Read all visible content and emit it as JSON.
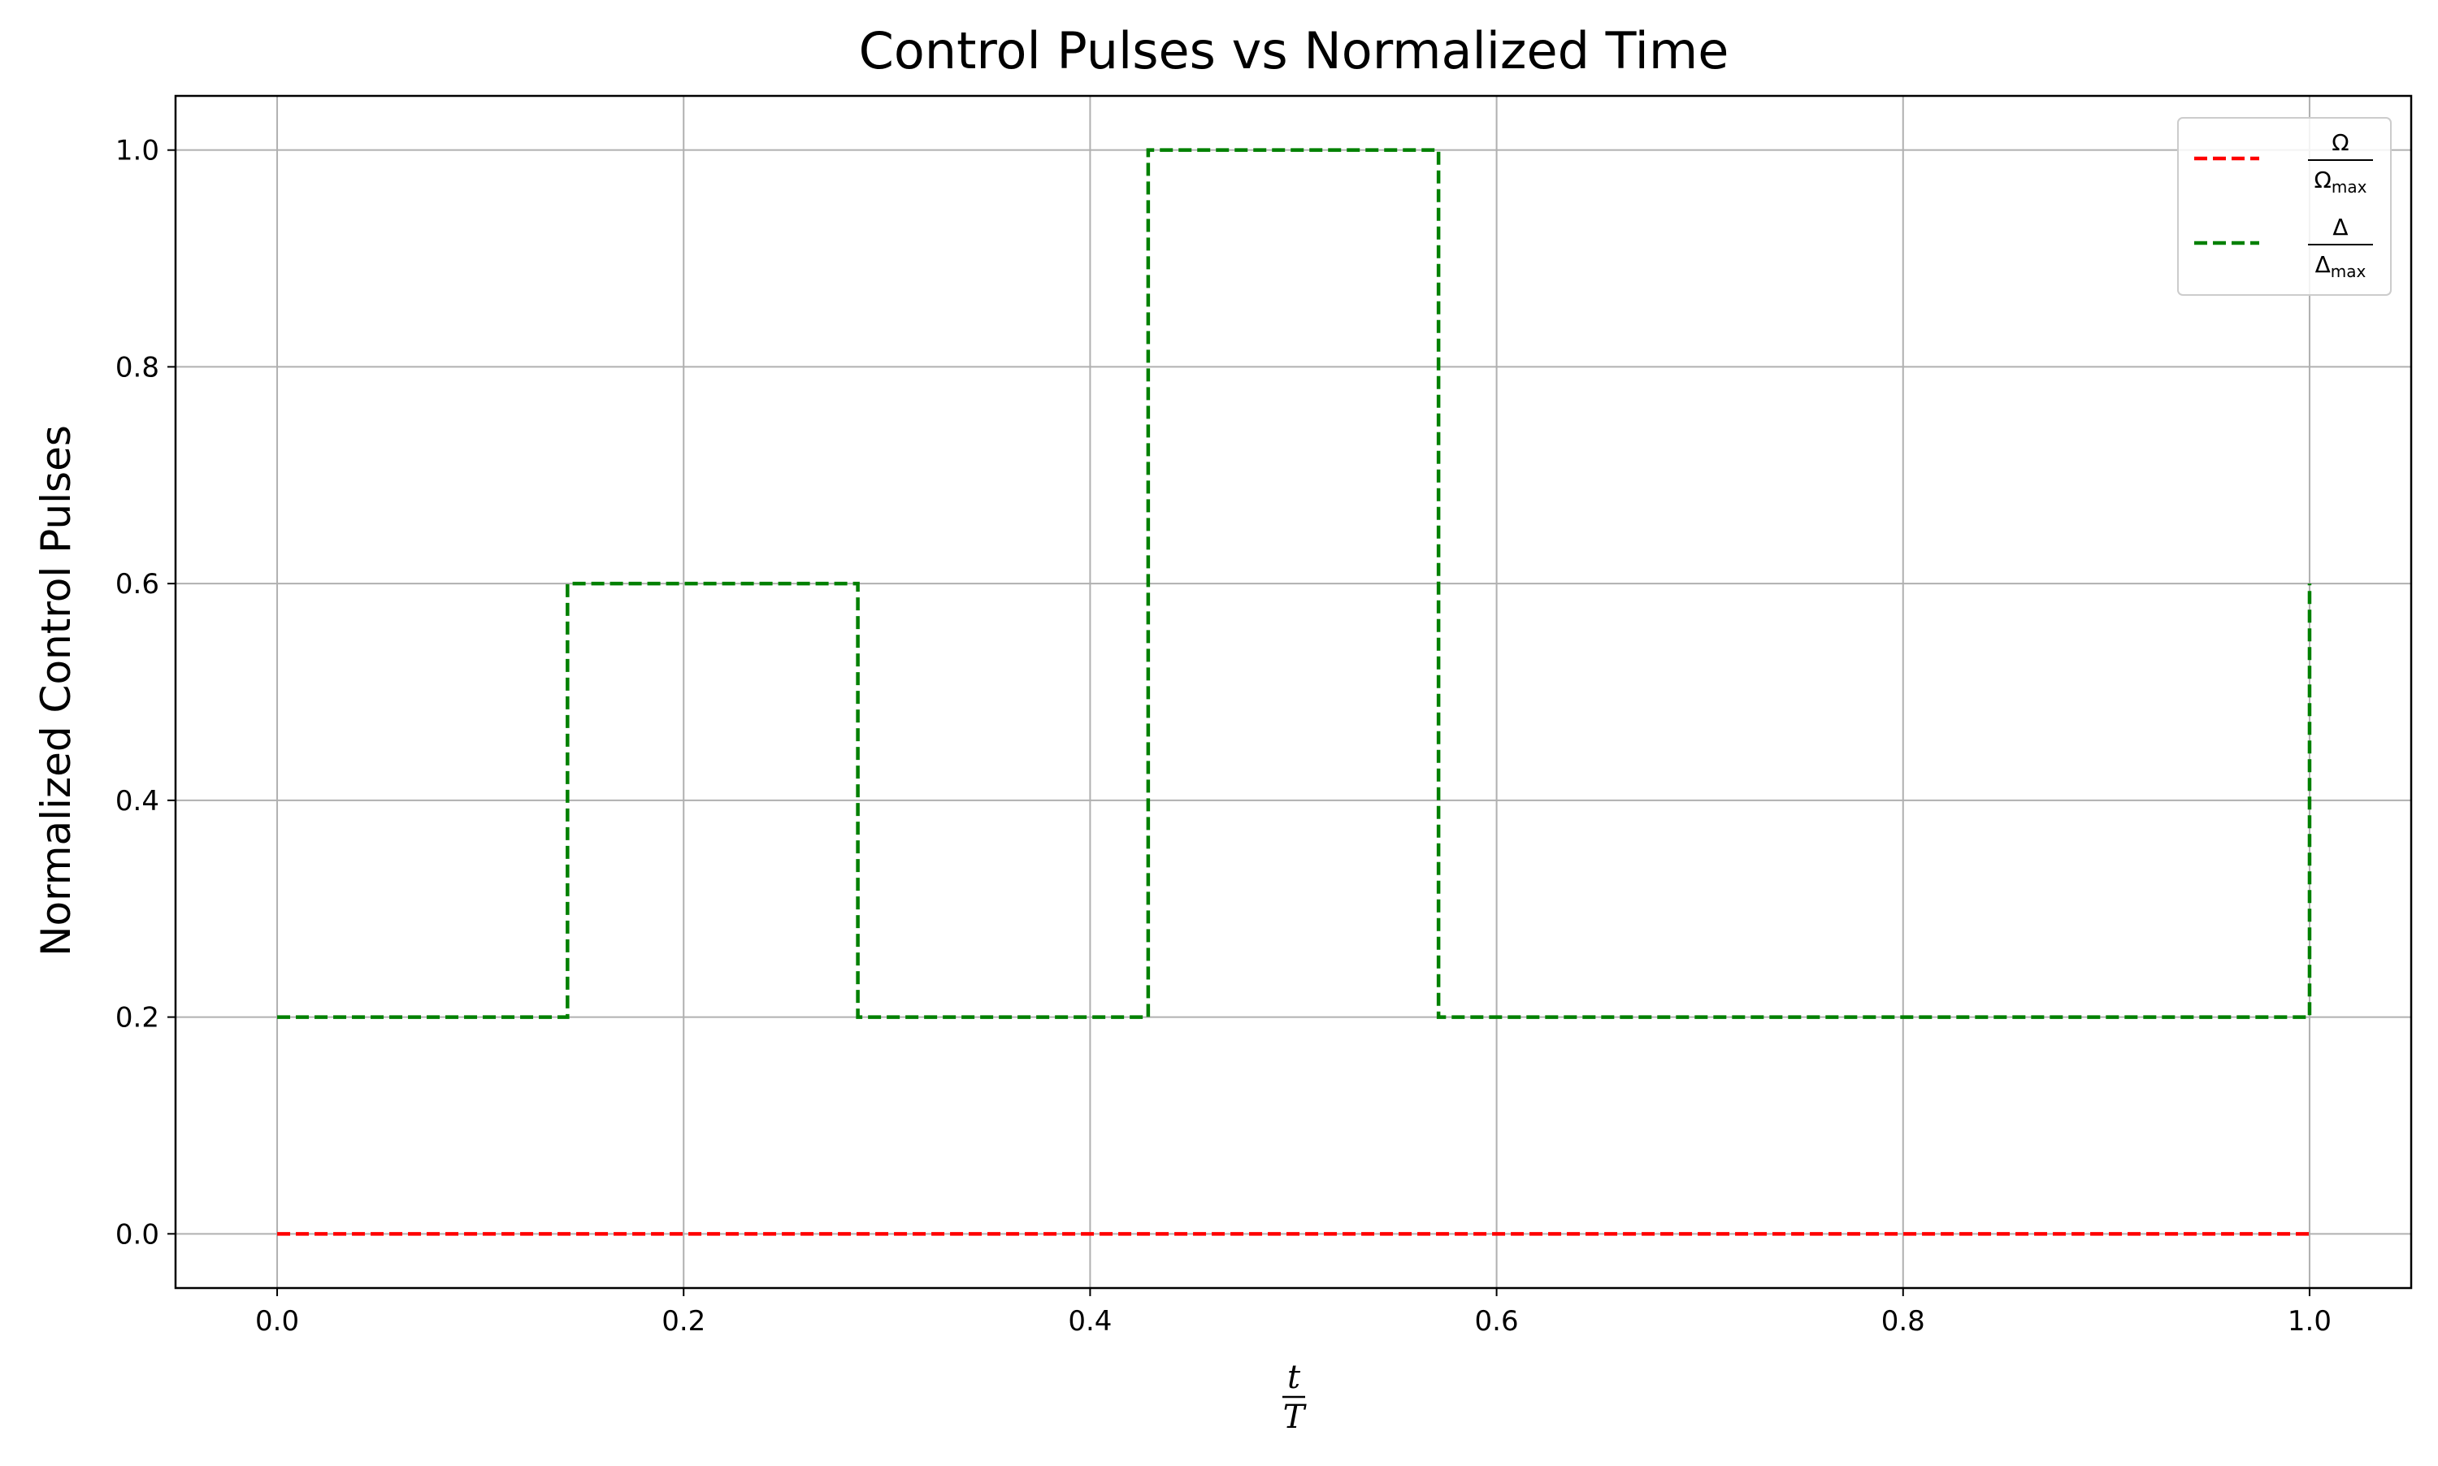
{
  "chart_data": {
    "type": "line",
    "title": "Control Pulses vs Normalized Time",
    "xlabel": {
      "numerator": "t",
      "denominator": "T"
    },
    "ylabel": "Normalized Control Pulses",
    "xlim": [
      -0.05,
      1.05
    ],
    "ylim": [
      -0.05,
      1.05
    ],
    "x_ticks": [
      0.0,
      0.2,
      0.4,
      0.6,
      0.8,
      1.0
    ],
    "x_tick_labels": [
      "0.0",
      "0.2",
      "0.4",
      "0.6",
      "0.8",
      "1.0"
    ],
    "y_ticks": [
      0.0,
      0.2,
      0.4,
      0.6,
      0.8,
      1.0
    ],
    "y_tick_labels": [
      "0.0",
      "0.2",
      "0.4",
      "0.6",
      "0.8",
      "1.0"
    ],
    "grid": true,
    "legend_position": "top-right",
    "series": [
      {
        "legend": {
          "numerator": "Ω",
          "denominator_base": "Ω",
          "denominator_sub": "max"
        },
        "color": "#ff0000",
        "line_style": "dashed",
        "step": "post",
        "x": [
          0.0,
          0.142857,
          0.285714,
          0.428571,
          0.571429,
          0.714286,
          0.857143,
          1.0
        ],
        "y": [
          0.0,
          0.0,
          0.0,
          0.0,
          0.0,
          0.0,
          0.0,
          0.0
        ]
      },
      {
        "legend": {
          "numerator": "Δ",
          "denominator_base": "Δ",
          "denominator_sub": "max"
        },
        "color": "#008000",
        "line_style": "dashed",
        "step": "post",
        "x": [
          0.0,
          0.142857,
          0.285714,
          0.428571,
          0.571429,
          0.714286,
          0.857143,
          1.0
        ],
        "y": [
          0.2,
          0.6,
          0.2,
          1.0,
          0.2,
          0.2,
          0.2,
          0.6
        ]
      }
    ]
  }
}
